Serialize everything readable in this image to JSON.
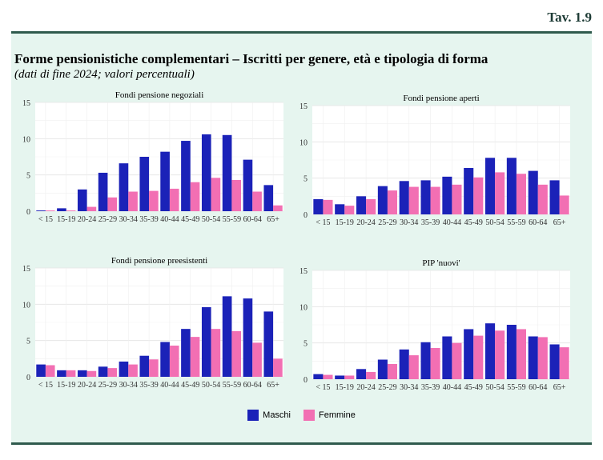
{
  "header": {
    "table_number": "Tav. 1.9",
    "title": "Forme pensionistiche complementari – Iscritti per genere, età e tipologia di forma",
    "subtitle": "(dati di fine 2024; valori percentuali)"
  },
  "colors": {
    "maschi": "#1b22b8",
    "femmine": "#f26fb3"
  },
  "legend": {
    "maschi": "Maschi",
    "femmine": "Femmine"
  },
  "chart_data": [
    {
      "type": "bar",
      "title": "Fondi pensione negoziali",
      "categories": [
        "< 15",
        "15-19",
        "20-24",
        "25-29",
        "30-34",
        "35-39",
        "40-44",
        "45-49",
        "50-54",
        "55-59",
        "60-64",
        "65+"
      ],
      "ylim": [
        0,
        15
      ],
      "yticks": [
        0,
        5,
        10,
        15
      ],
      "grid": true,
      "series": [
        {
          "name": "Maschi",
          "values": [
            0.1,
            0.4,
            3.0,
            5.3,
            6.6,
            7.5,
            8.2,
            9.7,
            10.6,
            10.5,
            7.1,
            3.6
          ]
        },
        {
          "name": "Femmine",
          "values": [
            0.1,
            0.1,
            0.6,
            1.9,
            2.7,
            2.8,
            3.1,
            4.0,
            4.6,
            4.3,
            2.7,
            0.8
          ]
        }
      ]
    },
    {
      "type": "bar",
      "title": "Fondi pensione aperti",
      "categories": [
        "< 15",
        "15-19",
        "20-24",
        "25-29",
        "30-34",
        "35-39",
        "40-44",
        "45-49",
        "50-54",
        "55-59",
        "60-64",
        "65+"
      ],
      "ylim": [
        0,
        15
      ],
      "yticks": [
        0,
        5,
        10,
        15
      ],
      "grid": true,
      "series": [
        {
          "name": "Maschi",
          "values": [
            2.1,
            1.4,
            2.5,
            3.9,
            4.6,
            4.7,
            5.2,
            6.4,
            7.8,
            7.8,
            6.0,
            4.7
          ]
        },
        {
          "name": "Femmine",
          "values": [
            2.0,
            1.2,
            2.1,
            3.3,
            3.8,
            3.8,
            4.1,
            5.1,
            5.8,
            5.6,
            4.1,
            2.6
          ]
        }
      ]
    },
    {
      "type": "bar",
      "title": "Fondi pensione preesistenti",
      "categories": [
        "< 15",
        "15-19",
        "20-24",
        "25-29",
        "30-34",
        "35-39",
        "40-44",
        "45-49",
        "50-54",
        "55-59",
        "60-64",
        "65+"
      ],
      "ylim": [
        0,
        15
      ],
      "yticks": [
        0,
        5,
        10,
        15
      ],
      "grid": true,
      "series": [
        {
          "name": "Maschi",
          "values": [
            1.7,
            0.9,
            0.9,
            1.4,
            2.1,
            2.9,
            4.8,
            6.6,
            9.6,
            11.1,
            10.8,
            9.0
          ]
        },
        {
          "name": "Femmine",
          "values": [
            1.6,
            0.9,
            0.8,
            1.2,
            1.7,
            2.4,
            4.3,
            5.5,
            6.6,
            6.3,
            4.7,
            2.5
          ]
        }
      ]
    },
    {
      "type": "bar",
      "title": "PIP 'nuovi'",
      "categories": [
        "< 15",
        "15-19",
        "20-24",
        "25-29",
        "30-34",
        "35-39",
        "40-44",
        "45-49",
        "50-54",
        "55-59",
        "60-64",
        "65+"
      ],
      "ylim": [
        0,
        15
      ],
      "yticks": [
        0,
        5,
        10,
        15
      ],
      "grid": true,
      "series": [
        {
          "name": "Maschi",
          "values": [
            0.7,
            0.5,
            1.4,
            2.7,
            4.1,
            5.1,
            5.9,
            6.9,
            7.7,
            7.5,
            5.9,
            4.8
          ]
        },
        {
          "name": "Femmine",
          "values": [
            0.6,
            0.5,
            1.0,
            2.1,
            3.3,
            4.3,
            5.0,
            6.0,
            6.7,
            6.9,
            5.8,
            4.4
          ]
        }
      ]
    }
  ]
}
